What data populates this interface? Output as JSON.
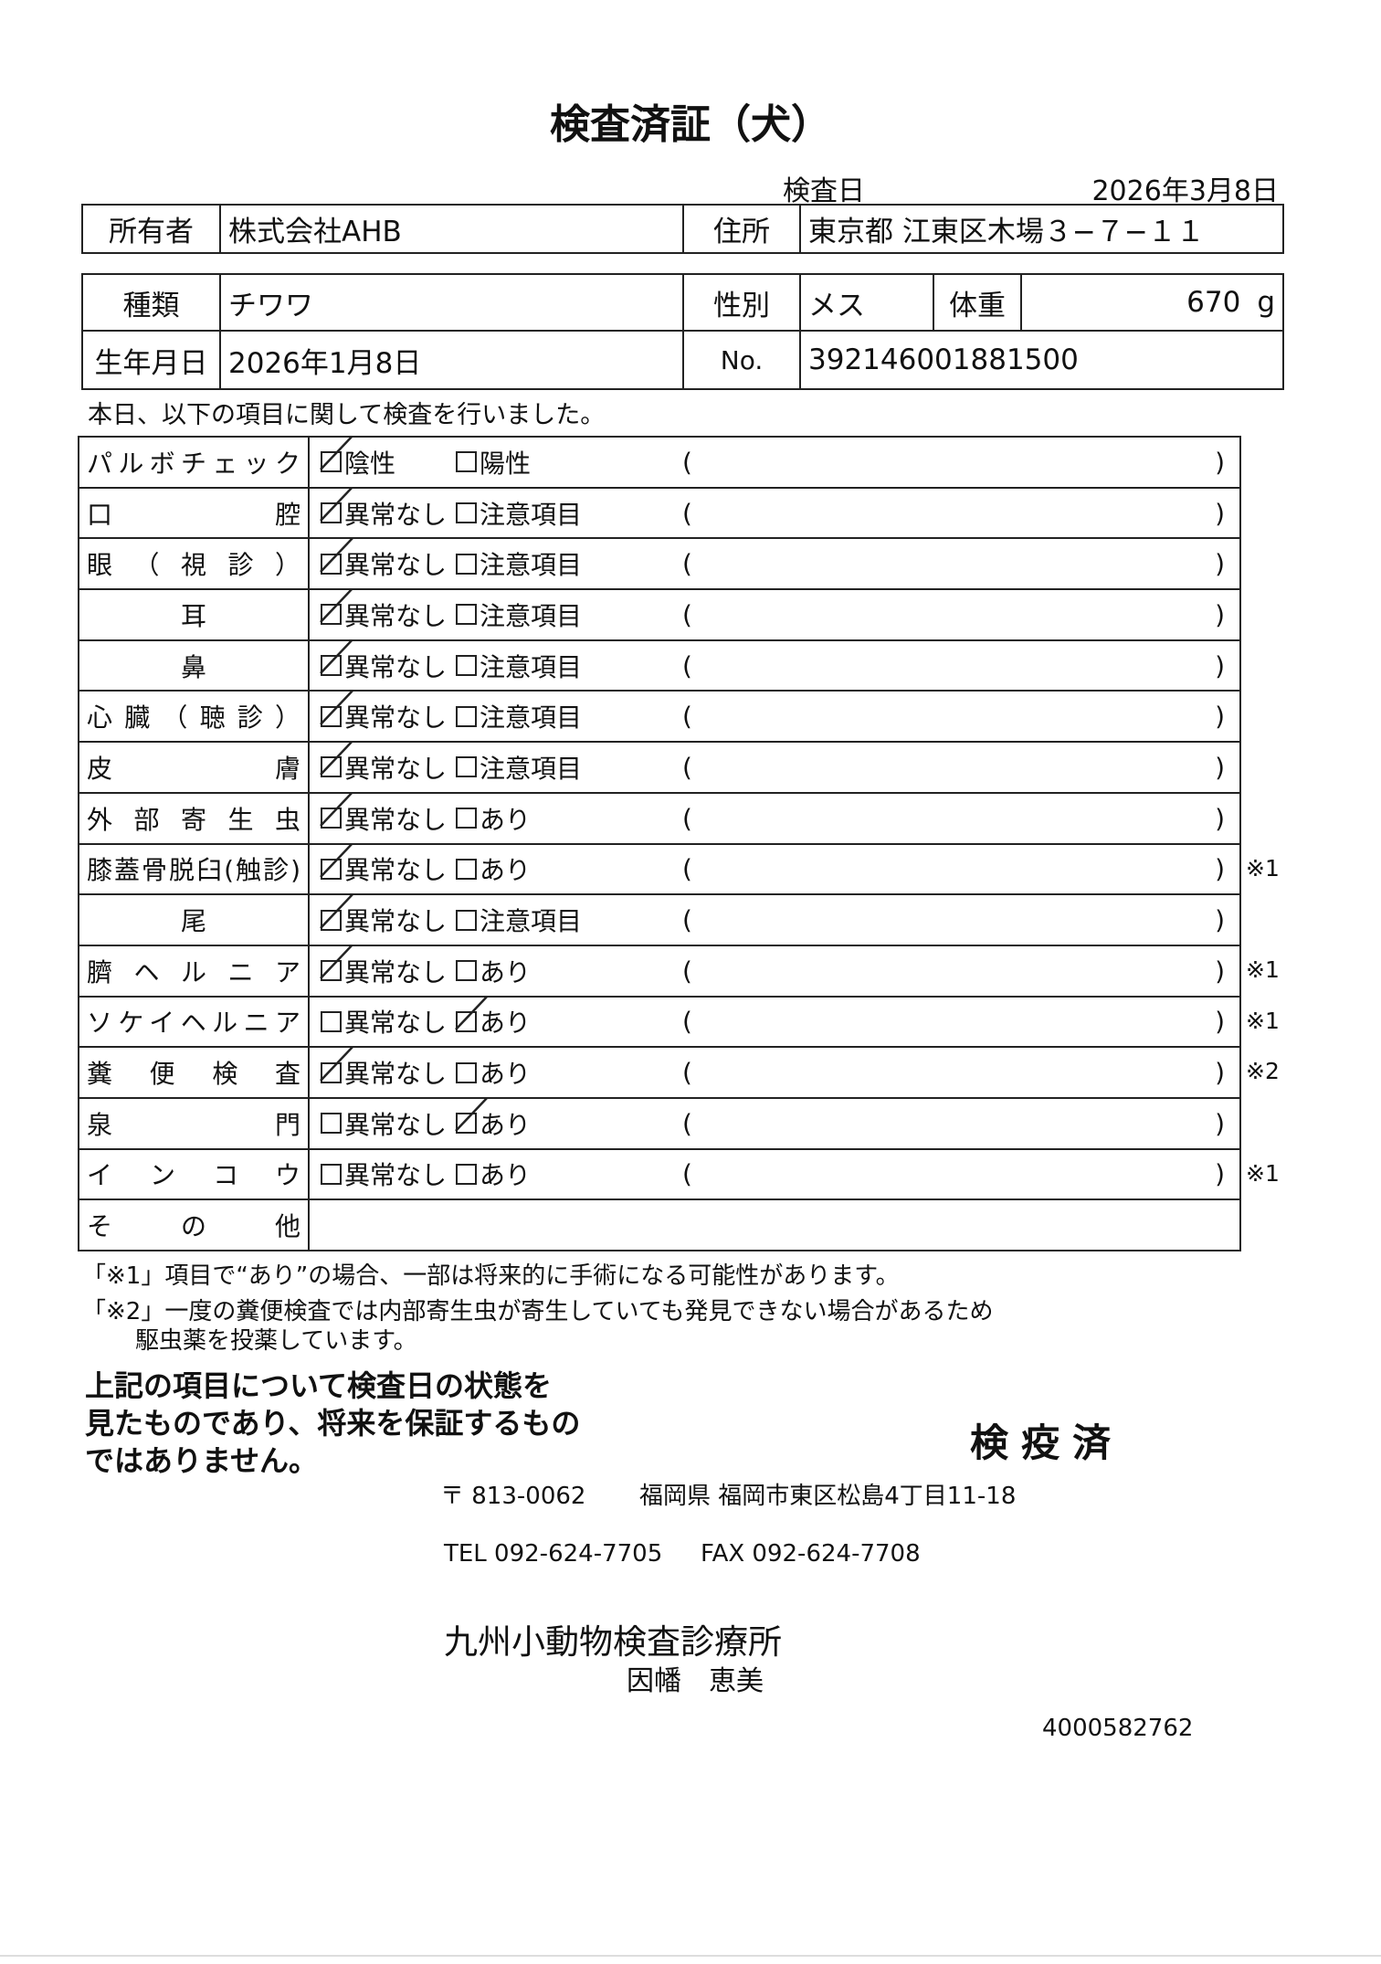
{
  "title": "検査済証（犬）",
  "inspection_date": {
    "label": "検査日",
    "value": "2026年3月8日"
  },
  "owner_table": {
    "owner_label": "所有者",
    "owner": "株式会社AHB",
    "address_label": "住所",
    "address": "東京都 江東区木場３−７−１１"
  },
  "animal_table": {
    "breed_label": "種類",
    "breed": "チワワ",
    "sex_label": "性別",
    "sex": "メス",
    "weight_label": "体重",
    "weight": 670,
    "weight_unit": "g",
    "birth_label": "生年月日",
    "birth": "2026年1月8日",
    "no_label": "No.",
    "no": "392146001881500"
  },
  "intro": "本日、以下の項目に関して検査を行いました。",
  "checks": {
    "open": "(",
    "close": ")",
    "rows": [
      {
        "label": "パルボチェック",
        "options": [
          {
            "label": "陰性",
            "checked": true
          },
          {
            "label": "陽性",
            "checked": false
          }
        ]
      },
      {
        "label": "口腔",
        "options": [
          {
            "label": "異常なし",
            "checked": true
          },
          {
            "label": "注意項目",
            "checked": false
          }
        ]
      },
      {
        "label": "眼（視診）",
        "options": [
          {
            "label": "異常なし",
            "checked": true
          },
          {
            "label": "注意項目",
            "checked": false
          }
        ]
      },
      {
        "label": "耳",
        "options": [
          {
            "label": "異常なし",
            "checked": true
          },
          {
            "label": "注意項目",
            "checked": false
          }
        ]
      },
      {
        "label": "鼻",
        "options": [
          {
            "label": "異常なし",
            "checked": true
          },
          {
            "label": "注意項目",
            "checked": false
          }
        ]
      },
      {
        "label": "心臓（聴診）",
        "options": [
          {
            "label": "異常なし",
            "checked": true
          },
          {
            "label": "注意項目",
            "checked": false
          }
        ]
      },
      {
        "label": "皮膚",
        "options": [
          {
            "label": "異常なし",
            "checked": true
          },
          {
            "label": "注意項目",
            "checked": false
          }
        ]
      },
      {
        "label": "外部寄生虫",
        "options": [
          {
            "label": "異常なし",
            "checked": true
          },
          {
            "label": "あり",
            "checked": false
          }
        ]
      },
      {
        "label": "膝蓋骨脱臼(触診)",
        "options": [
          {
            "label": "異常なし",
            "checked": true
          },
          {
            "label": "あり",
            "checked": false
          }
        ],
        "note": "※1"
      },
      {
        "label": "尾",
        "options": [
          {
            "label": "異常なし",
            "checked": true
          },
          {
            "label": "注意項目",
            "checked": false
          }
        ]
      },
      {
        "label": "臍ヘルニア",
        "options": [
          {
            "label": "異常なし",
            "checked": true
          },
          {
            "label": "あり",
            "checked": false
          }
        ],
        "note": "※1"
      },
      {
        "label": "ソケイヘルニア",
        "options": [
          {
            "label": "異常なし",
            "checked": false
          },
          {
            "label": "あり",
            "checked": true
          }
        ],
        "note": "※1"
      },
      {
        "label": "糞便検査",
        "options": [
          {
            "label": "異常なし",
            "checked": true
          },
          {
            "label": "あり",
            "checked": false
          }
        ],
        "note": "※2"
      },
      {
        "label": "泉門",
        "options": [
          {
            "label": "異常なし",
            "checked": false
          },
          {
            "label": "あり",
            "checked": true
          }
        ]
      },
      {
        "label": "インコウ",
        "options": [
          {
            "label": "異常なし",
            "checked": false
          },
          {
            "label": "あり",
            "checked": false
          }
        ],
        "note": "※1"
      },
      {
        "label": "その他"
      }
    ]
  },
  "notes": [
    "「※1」項目で“あり”の場合、一部は将来的に手術になる可能性があります。",
    "「※2」一度の糞便検査では内部寄生虫が寄生していても発見できない場合があるため",
    "駆虫薬を投薬しています。"
  ],
  "disclaimer": [
    "上記の項目について検査日の状態を",
    "見たものであり、将来を保証するもの",
    "ではありません。"
  ],
  "stamp": "検疫済",
  "clinic": {
    "postal": "〒 813-0062",
    "address": "福岡県 福岡市東区松島4丁目11-18",
    "tel": "TEL 092-624-7705",
    "fax": "FAX 092-624-7708",
    "name": "九州小動物検査診療所",
    "vet": "因幡　恵美"
  },
  "doc_id": "4000582762"
}
